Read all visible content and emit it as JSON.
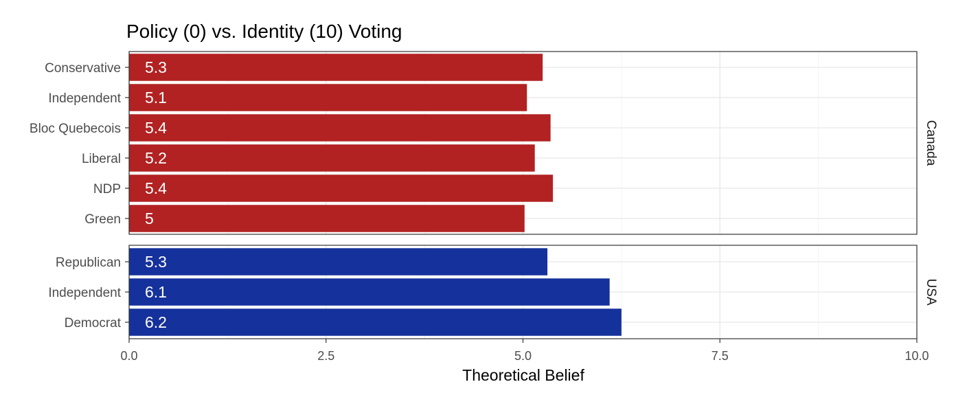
{
  "chart_data": {
    "type": "bar",
    "orientation": "horizontal",
    "title": "Policy (0) vs. Identity (10) Voting",
    "xlabel": "Theoretical Belief",
    "ylabel": "",
    "xlim": [
      0,
      10
    ],
    "x_ticks": [
      0,
      2.5,
      5,
      7.5,
      10
    ],
    "x_tick_labels": [
      "0.0",
      "2.5",
      "5.0",
      "7.5",
      "10.0"
    ],
    "grid": true,
    "facets": [
      {
        "name": "Canada",
        "color": "#b22222",
        "categories": [
          "Conservative",
          "Independent",
          "Bloc Quebecois",
          "Liberal",
          "NDP",
          "Green"
        ],
        "values": [
          5.25,
          5.05,
          5.35,
          5.15,
          5.38,
          5.02
        ],
        "labels": [
          "5.3",
          "5.1",
          "5.4",
          "5.2",
          "5.4",
          "5"
        ]
      },
      {
        "name": "USA",
        "color": "#15319b",
        "categories": [
          "Republican",
          "Independent",
          "Democrat"
        ],
        "values": [
          5.31,
          6.1,
          6.25
        ],
        "labels": [
          "5.3",
          "6.1",
          "6.2"
        ]
      }
    ]
  }
}
